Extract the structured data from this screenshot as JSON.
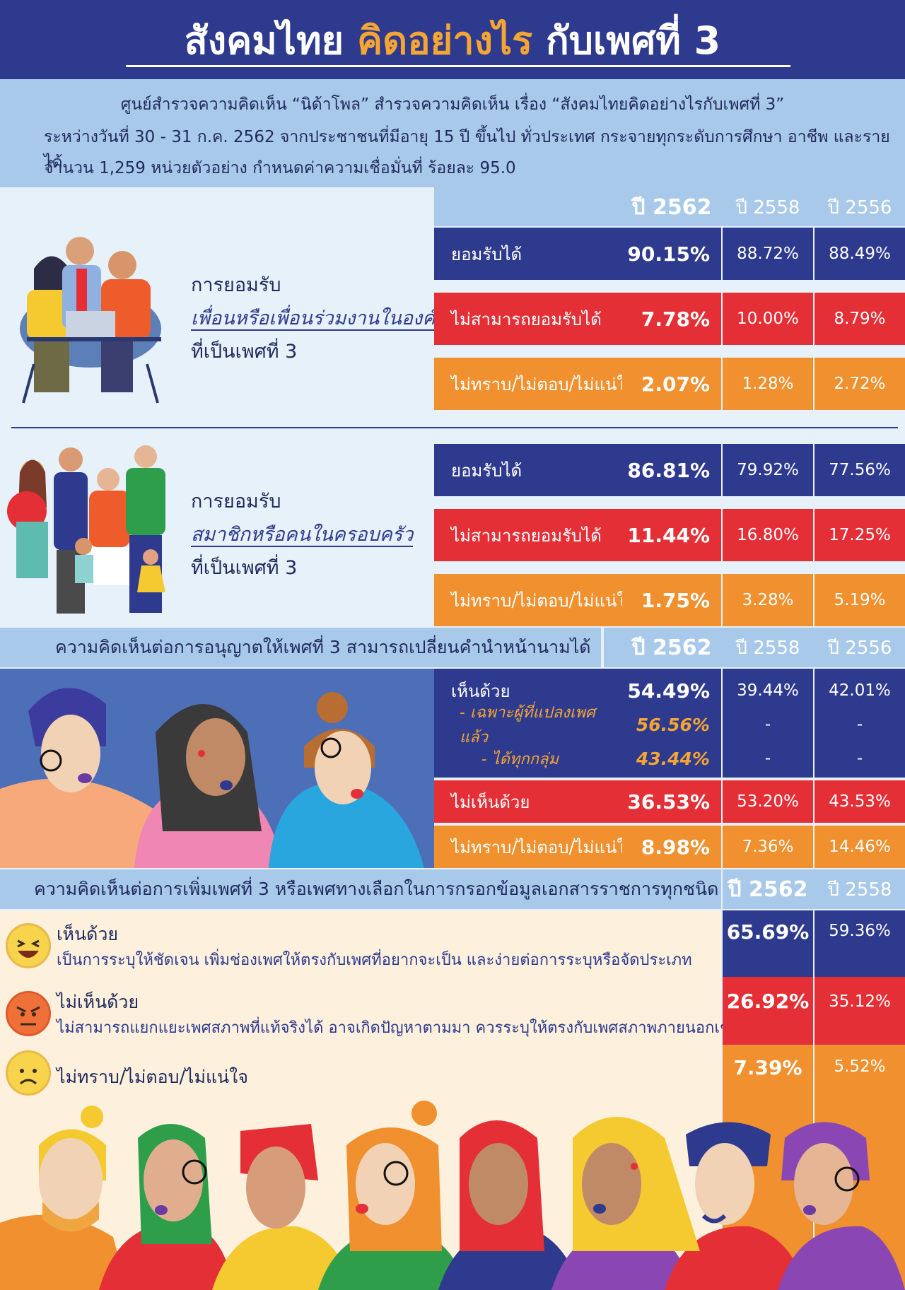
{
  "title": {
    "part1": "สังคมไทย",
    "part2": "คิดอย่างไร",
    "part3": "กับเพศที่ 3"
  },
  "intro": {
    "line1": "ศูนย์สำรวจความคิดเห็น “นิด้าโพล” สำรวจความคิดเห็น เรื่อง “สังคมไทยคิดอย่างไรกับเพศที่ 3”",
    "line2": "ระหว่างวันที่ 30 - 31 ก.ค. 2562 จากประชาชนที่มีอายุ 15 ปี ขึ้นไป ทั่วประเทศ กระจายทุกระดับการศึกษา อาชีพ และรายได้",
    "line3": "จำนวน 1,259 หน่วยตัวอย่าง กำหนดค่าความเชื่อมั่นที่ ร้อยละ 95.0"
  },
  "years": {
    "y2562": "ปี 2562",
    "y2558": "ปี 2558",
    "y2556": "ปี 2556"
  },
  "section1": {
    "caption1": "การยอมรับ",
    "caption2": "เพื่อนหรือเพื่อนร่วมงานในองค์กร",
    "caption3": "ที่เป็นเพศที่ 3",
    "rows": [
      {
        "label": "ยอมรับได้",
        "v2562": "90.15%",
        "v2558": "88.72%",
        "v2556": "88.49%"
      },
      {
        "label": "ไม่สามารถยอมรับได้",
        "v2562": "7.78%",
        "v2558": "10.00%",
        "v2556": "8.79%"
      },
      {
        "label": "ไม่ทราบ/ไม่ตอบ/ไม่แน่ใจ",
        "v2562": "2.07%",
        "v2558": "1.28%",
        "v2556": "2.72%"
      }
    ]
  },
  "section2": {
    "caption1": "การยอมรับ",
    "caption2": "สมาชิกหรือคนในครอบครัว",
    "caption3": "ที่เป็นเพศที่ 3",
    "rows": [
      {
        "label": "ยอมรับได้",
        "v2562": "86.81%",
        "v2558": "79.92%",
        "v2556": "77.56%"
      },
      {
        "label": "ไม่สามารถยอมรับได้",
        "v2562": "11.44%",
        "v2558": "16.80%",
        "v2556": "17.25%"
      },
      {
        "label": "ไม่ทราบ/ไม่ตอบ/ไม่แน่ใจ",
        "v2562": "1.75%",
        "v2558": "3.28%",
        "v2556": "5.19%"
      }
    ]
  },
  "section3": {
    "title": "ความคิดเห็นต่อการอนุญาตให้เพศที่ 3 สามารถเปลี่ยนคำนำหน้านามได้",
    "agree": {
      "label": "เห็นด้วย",
      "v2562": "54.49%",
      "v2558": "39.44%",
      "v2556": "42.01%"
    },
    "sub1": {
      "label": "- เฉพาะผู้ที่แปลงเพศแล้ว",
      "v2562": "56.56%",
      "v2558": "-",
      "v2556": "-"
    },
    "sub2": {
      "label": "- ได้ทุกกลุ่ม",
      "v2562": "43.44%",
      "v2558": "-",
      "v2556": "-"
    },
    "disagree": {
      "label": "ไม่เห็นด้วย",
      "v2562": "36.53%",
      "v2558": "53.20%",
      "v2556": "43.53%"
    },
    "unsure": {
      "label": "ไม่ทราบ/ไม่ตอบ/ไม่แน่ใจ",
      "v2562": "8.98%",
      "v2558": "7.36%",
      "v2556": "14.46%"
    }
  },
  "section4": {
    "title": "ความคิดเห็นต่อการเพิ่มเพศที่ 3 หรือเพศทางเลือกในการกรอกข้อมูลเอกสารราชการทุกชนิด",
    "agree": {
      "label": "เห็นด้วย",
      "desc": "เป็นการระบุให้ชัดเจน เพิ่มช่องเพศให้ตรงกับเพศที่อยากจะเป็น และง่ายต่อการระบุหรือจัดประเภท",
      "v2562": "65.69%",
      "v2558": "59.36%"
    },
    "disagree": {
      "label": "ไม่เห็นด้วย",
      "desc": "ไม่สามารถแยกแยะเพศสภาพที่แท้จริงได้ อาจเกิดปัญหาตามมา ควรระบุให้ตรงกับเพศสภาพภายนอกเช่นเดิม",
      "v2562": "26.92%",
      "v2558": "35.12%"
    },
    "unsure": {
      "label": "ไม่ทราบ/ไม่ตอบ/ไม่แน่ใจ",
      "v2562": "7.39%",
      "v2558": "5.52%"
    }
  },
  "colors": {
    "navy": "#2e3a8e",
    "red": "#e52f36",
    "orange": "#f0902e",
    "lightblue": "#a9c9ea",
    "accent": "#f4a533"
  }
}
